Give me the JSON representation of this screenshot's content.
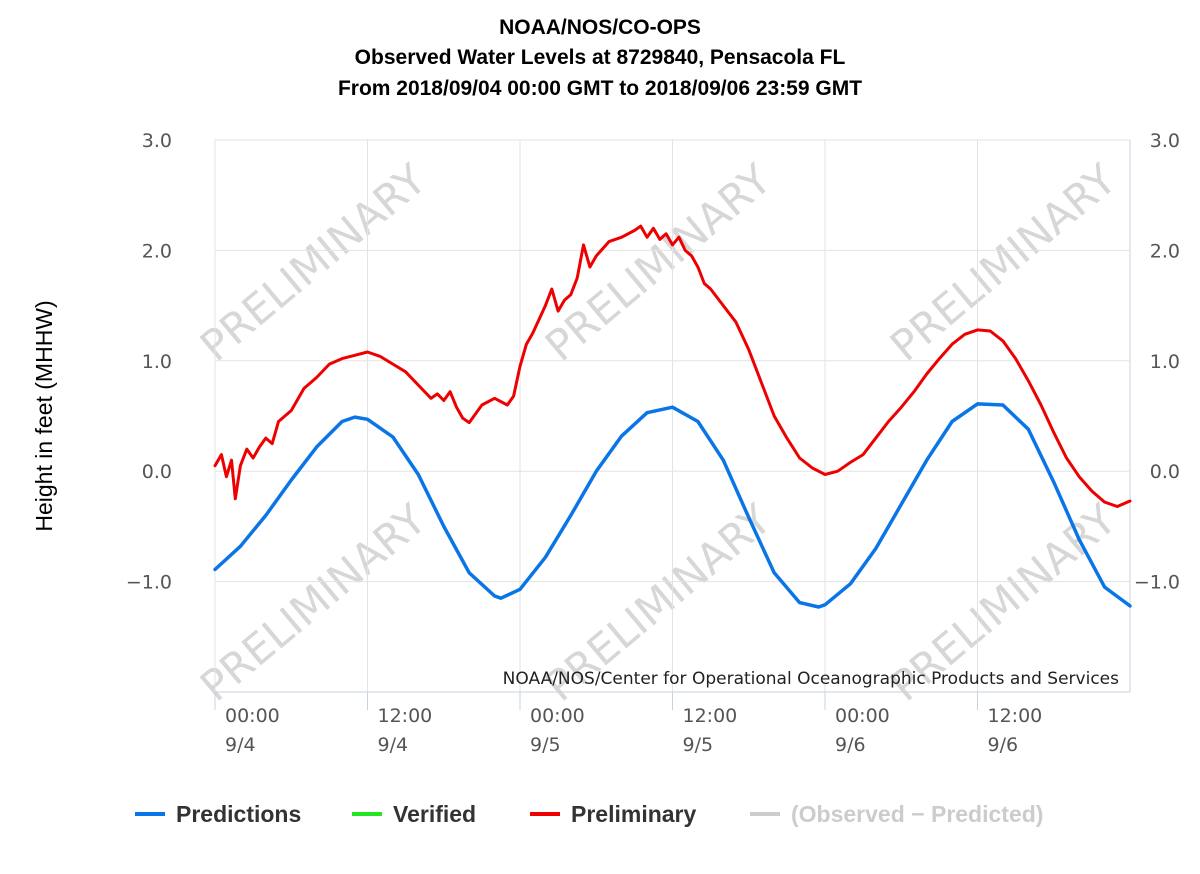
{
  "chart_data": {
    "type": "line",
    "title": [
      "NOAA/NOS/CO-OPS",
      "Observed Water Levels at 8729840, Pensacola FL",
      "From 2018/09/04 00:00 GMT to 2018/09/06 23:59 GMT"
    ],
    "ylabel": "Height in feet (MHHW)",
    "credit": "NOAA/NOS/Center for Operational Oceanographic Products and Services",
    "watermark": "PRELIMINARY",
    "ylim": [
      -2.0,
      3.0
    ],
    "xlim_hours": [
      0,
      72
    ],
    "y_ticks": [
      {
        "value": 3.0,
        "label": "3.0"
      },
      {
        "value": 2.0,
        "label": "2.0"
      },
      {
        "value": 1.0,
        "label": "1.0"
      },
      {
        "value": 0.0,
        "label": "0.0"
      },
      {
        "value": -1.0,
        "label": "−1.0"
      }
    ],
    "x_ticks": [
      {
        "hour": 0,
        "time": "00:00",
        "date": "9/4"
      },
      {
        "hour": 12,
        "time": "12:00",
        "date": "9/4"
      },
      {
        "hour": 24,
        "time": "00:00",
        "date": "9/5"
      },
      {
        "hour": 36,
        "time": "12:00",
        "date": "9/5"
      },
      {
        "hour": 48,
        "time": "00:00",
        "date": "9/6"
      },
      {
        "hour": 60,
        "time": "12:00",
        "date": "9/6"
      }
    ],
    "grid": true,
    "legend_position": "bottom",
    "legend": [
      {
        "name": "Predictions",
        "color": "#0a75e6",
        "muted": false
      },
      {
        "name": "Verified",
        "color": "#22e622",
        "muted": false
      },
      {
        "name": "Preliminary",
        "color": "#ee0000",
        "muted": false
      },
      {
        "name": "(Observed − Predicted)",
        "color": "#cccccc",
        "muted": true
      }
    ],
    "series": [
      {
        "name": "Predictions",
        "color": "#0a75e6",
        "x": [
          0,
          2,
          4,
          6,
          8,
          10,
          11,
          12,
          14,
          16,
          18,
          20,
          22,
          22.5,
          24,
          26,
          28,
          30,
          32,
          34,
          36,
          38,
          40,
          42,
          44,
          46,
          47.5,
          48,
          50,
          52,
          54,
          56,
          58,
          60,
          62,
          64,
          66,
          68,
          70,
          72
        ],
        "y": [
          -0.89,
          -0.68,
          -0.4,
          -0.08,
          0.22,
          0.45,
          0.49,
          0.47,
          0.31,
          -0.03,
          -0.5,
          -0.92,
          -1.13,
          -1.15,
          -1.07,
          -0.78,
          -0.4,
          0.0,
          0.32,
          0.53,
          0.58,
          0.45,
          0.1,
          -0.42,
          -0.92,
          -1.19,
          -1.23,
          -1.21,
          -1.02,
          -0.7,
          -0.3,
          0.1,
          0.45,
          0.61,
          0.6,
          0.38,
          -0.1,
          -0.62,
          -1.05,
          -1.22
        ]
      },
      {
        "name": "Preliminary",
        "color": "#ee0000",
        "x": [
          0,
          0.5,
          0.9,
          1.3,
          1.6,
          2.0,
          2.5,
          3.0,
          3.5,
          4.0,
          4.5,
          5.0,
          6.0,
          7.0,
          8.0,
          9.0,
          10.0,
          11.0,
          12.0,
          13.0,
          14.0,
          15.0,
          16.0,
          17.0,
          17.5,
          18.0,
          18.5,
          19.0,
          19.5,
          20.0,
          21.0,
          22.0,
          23.0,
          23.5,
          24.0,
          24.5,
          25.0,
          26.0,
          26.5,
          27.0,
          27.5,
          28.0,
          28.5,
          29.0,
          29.5,
          30.0,
          31.0,
          32.0,
          33.0,
          33.5,
          34.0,
          34.5,
          35.0,
          35.5,
          36.0,
          36.5,
          37.0,
          37.5,
          38.0,
          38.5,
          39.0,
          40.0,
          41.0,
          42.0,
          43.0,
          44.0,
          45.0,
          46.0,
          47.0,
          48.0,
          49.0,
          50.0,
          51.0,
          52.0,
          53.0,
          54.0,
          55.0,
          56.0,
          57.0,
          58.0,
          59.0,
          60.0,
          61.0,
          62.0,
          63.0,
          64.0,
          65.0,
          66.0,
          67.0,
          68.0,
          69.0,
          70.0,
          71.0,
          72.0
        ],
        "y": [
          0.05,
          0.15,
          -0.05,
          0.1,
          -0.25,
          0.05,
          0.2,
          0.12,
          0.22,
          0.3,
          0.25,
          0.45,
          0.55,
          0.75,
          0.85,
          0.97,
          1.02,
          1.05,
          1.08,
          1.04,
          0.97,
          0.9,
          0.78,
          0.66,
          0.7,
          0.64,
          0.72,
          0.58,
          0.48,
          0.44,
          0.6,
          0.66,
          0.6,
          0.68,
          0.95,
          1.15,
          1.25,
          1.5,
          1.65,
          1.45,
          1.55,
          1.6,
          1.75,
          2.05,
          1.85,
          1.95,
          2.08,
          2.12,
          2.18,
          2.22,
          2.12,
          2.2,
          2.1,
          2.15,
          2.05,
          2.12,
          2.0,
          1.95,
          1.85,
          1.7,
          1.65,
          1.5,
          1.35,
          1.1,
          0.8,
          0.5,
          0.3,
          0.12,
          0.03,
          -0.03,
          0.0,
          0.08,
          0.15,
          0.3,
          0.45,
          0.58,
          0.72,
          0.88,
          1.02,
          1.15,
          1.24,
          1.28,
          1.27,
          1.18,
          1.02,
          0.82,
          0.6,
          0.35,
          0.12,
          -0.05,
          -0.18,
          -0.28,
          -0.32,
          -0.27
        ]
      }
    ]
  }
}
